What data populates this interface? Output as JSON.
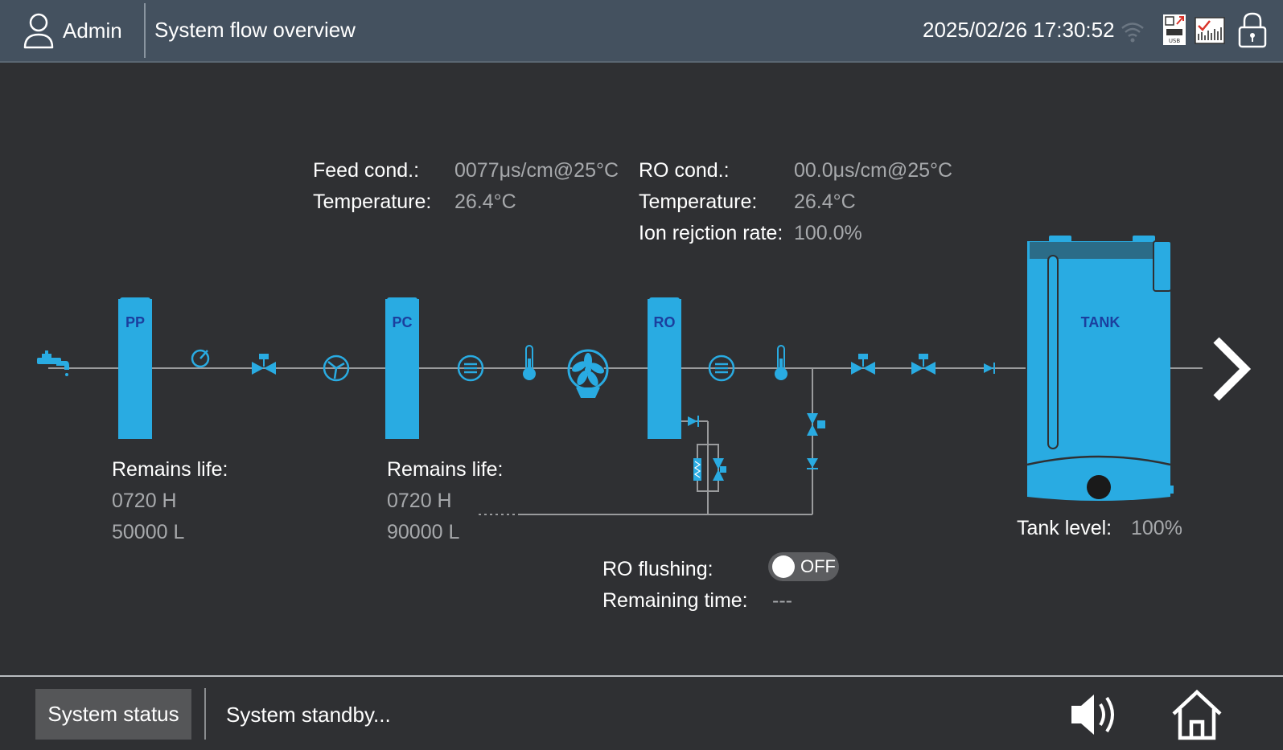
{
  "header": {
    "user_name": "Admin",
    "page_title": "System flow overview",
    "datetime": "2025/02/26 17:30:52",
    "icons": [
      "user-icon",
      "wifi-icon",
      "usb-export-icon",
      "report-icon",
      "lock-icon"
    ]
  },
  "readouts": {
    "feed_cond_label": "Feed cond.:",
    "feed_cond_value": "0077μs/cm@25°C",
    "feed_temp_label": "Temperature:",
    "feed_temp_value": "26.4°C",
    "ro_cond_label": "RO cond.:",
    "ro_cond_value": "00.0μs/cm@25°C",
    "ro_temp_label": "Temperature:",
    "ro_temp_value": "26.4°C",
    "ion_rejection_label": "Ion rejction rate:",
    "ion_rejection_value": "100.0%"
  },
  "filters": {
    "pp": {
      "label": "PP",
      "life_label": "Remains life:",
      "hours": "0720 H",
      "liters": "50000 L"
    },
    "pc": {
      "label": "PC",
      "life_label": "Remains life:",
      "hours": "0720 H",
      "liters": "90000 L"
    },
    "ro": {
      "label": "RO"
    }
  },
  "tank": {
    "label": "TANK",
    "level_label": "Tank level:",
    "level_value": "100%",
    "level_fraction": 1.0
  },
  "ro_flushing": {
    "label": "RO flushing:",
    "state": "OFF",
    "remaining_label": "Remaining time:",
    "remaining_value": "---"
  },
  "footer": {
    "status_button": "System status",
    "status_text": "System standby...",
    "icons": [
      "speaker-icon",
      "home-icon"
    ]
  },
  "colors": {
    "header_bg": "#44515f",
    "background": "#2f3033",
    "component_blue": "#29abe2",
    "label_blue": "#1b3f9e",
    "pipe": "#9a9b9d",
    "value_text": "#a7a9ac"
  }
}
